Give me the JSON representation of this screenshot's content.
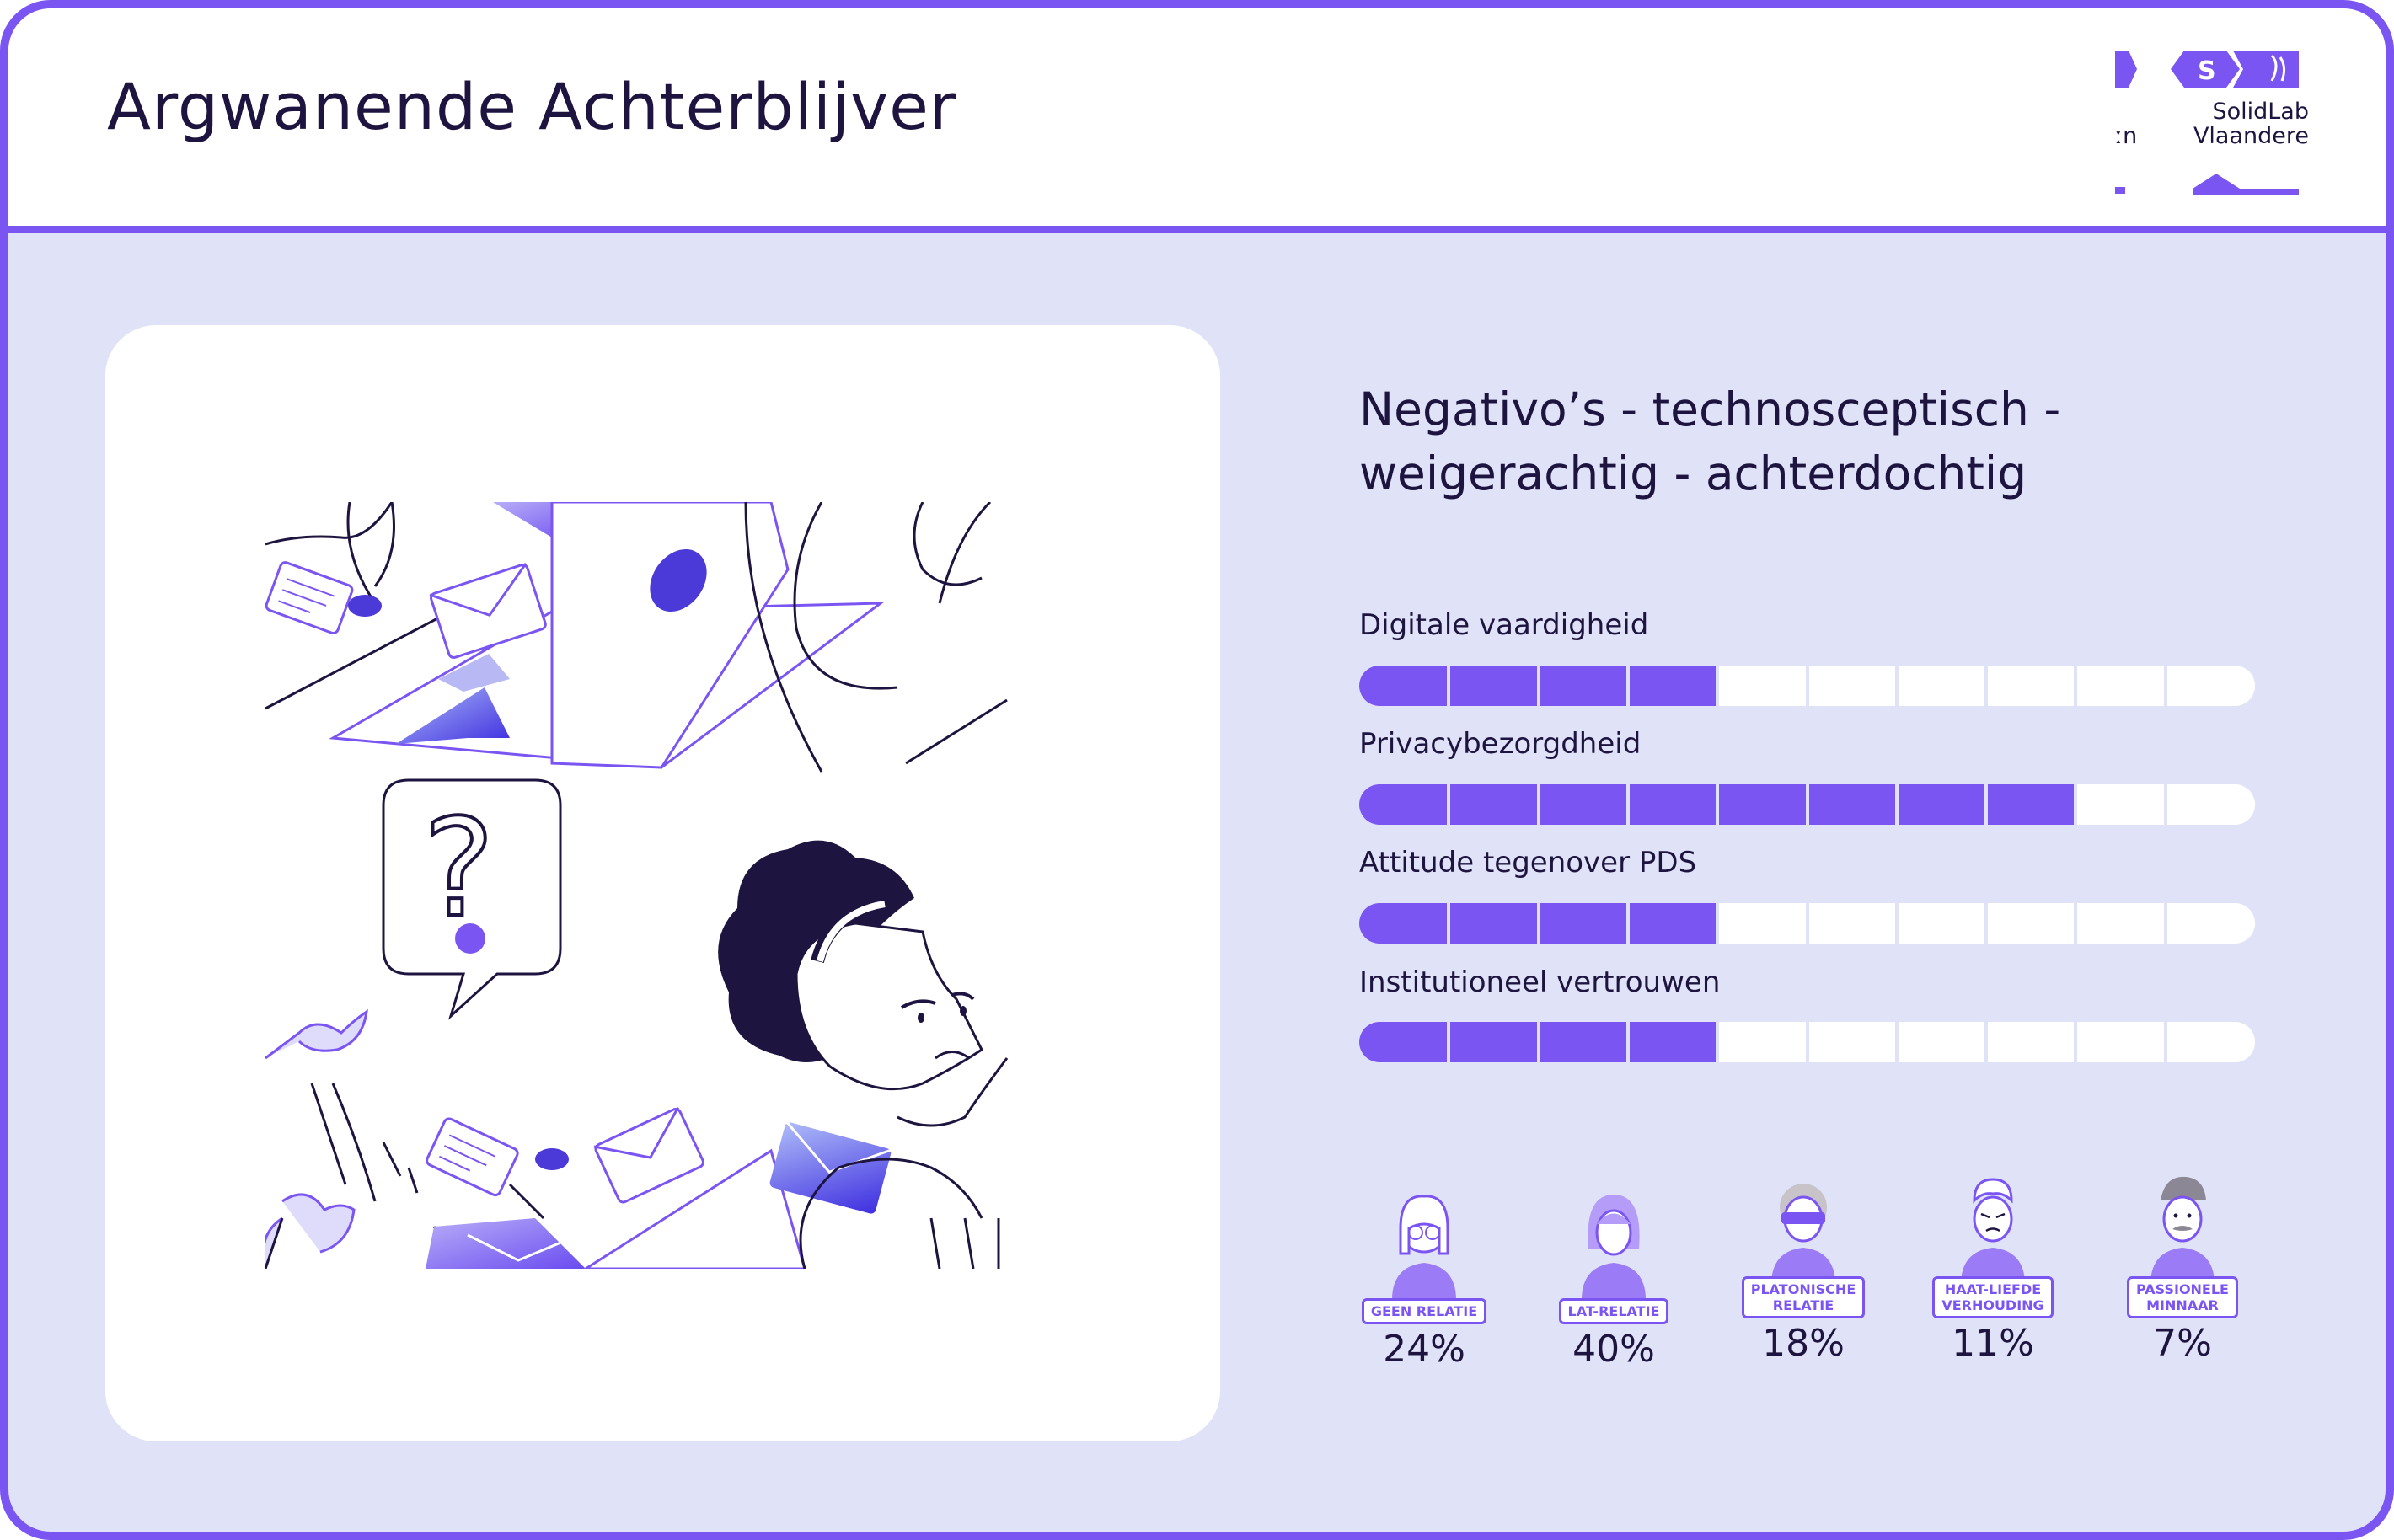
{
  "header": {
    "title": "Argwanende Achterblijver",
    "logo_text_line1": "SolidLab",
    "logo_text_line2": "Vlaandere",
    "logo_cut_text": "ːn"
  },
  "subtitle": "Negativo’s - technosceptisch - weigerachtig - achterdochtig",
  "colors": {
    "accent": "#7b55f2",
    "background": "#e0e3f7",
    "text": "#1e1440"
  },
  "metrics": [
    {
      "label": "Digitale vaardigheid",
      "filled": 4,
      "total": 10
    },
    {
      "label": "Privacybezorgdheid",
      "filled": 8,
      "total": 10
    },
    {
      "label": "Attitude tegenover PDS",
      "filled": 4,
      "total": 10
    },
    {
      "label": "Institutioneel vertrouwen",
      "filled": 4,
      "total": 10
    }
  ],
  "personas": [
    {
      "label": "GEEN RELATIE",
      "percent": "24%",
      "icon": "avatar-glasses-icon"
    },
    {
      "label": "LAT-RELATIE",
      "percent": "40%",
      "icon": "avatar-woman-icon"
    },
    {
      "label": "PLATONISCHE\nRELATIE",
      "percent": "18%",
      "icon": "avatar-blindfold-icon"
    },
    {
      "label": "HAAT-LIEFDE\nVERHOUDING",
      "percent": "11%",
      "icon": "avatar-angry-icon"
    },
    {
      "label": "PASSIONELE\nMINNAAR",
      "percent": "7%",
      "icon": "avatar-mustache-icon"
    }
  ],
  "illustration": {
    "icon": "suspicious-woman-illustration",
    "question_mark": "?"
  }
}
